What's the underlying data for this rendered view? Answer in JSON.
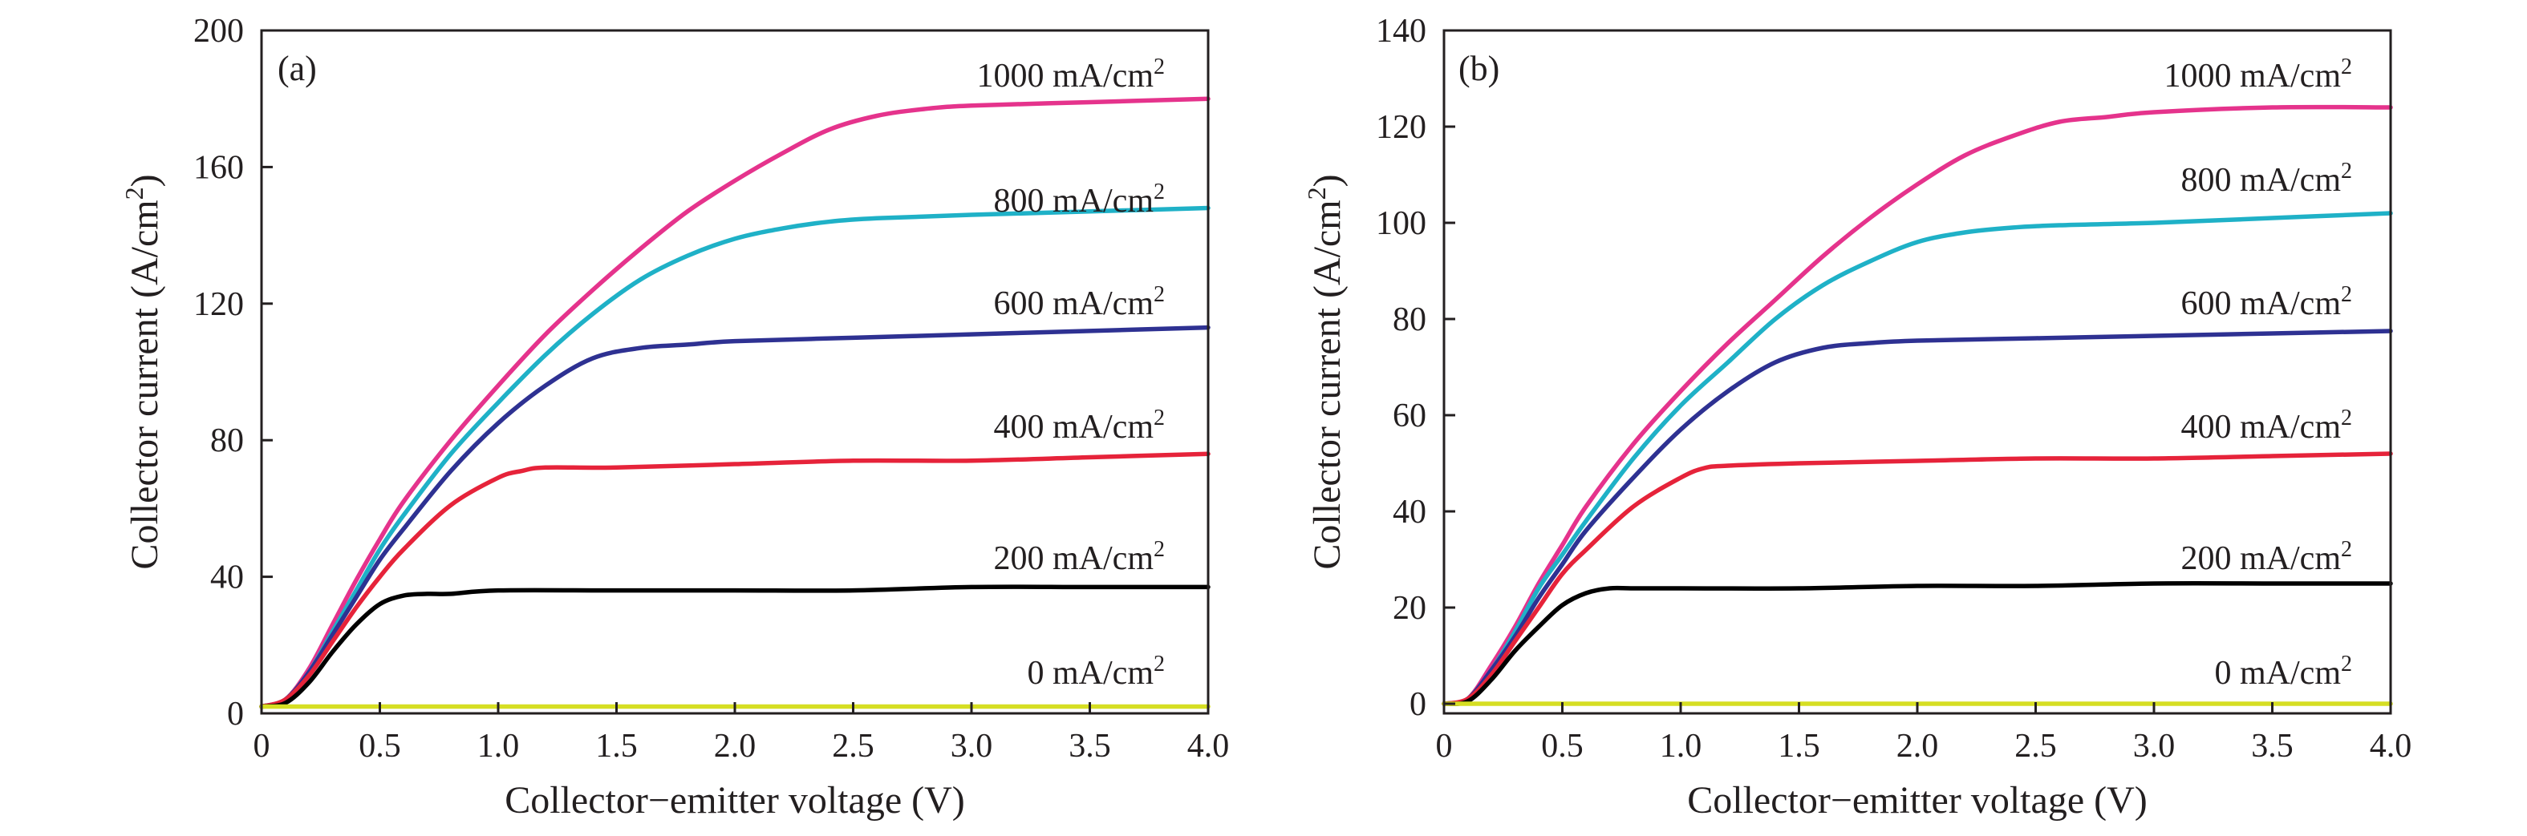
{
  "chart_data": [
    {
      "type": "line",
      "panel_label": "(a)",
      "xlabel": "Collector−emitter voltage (V)",
      "ylabel": "Collector current (A/cm",
      "ylabel_sup": "2",
      "ylabel_end": ")",
      "xlim": [
        0,
        4.0
      ],
      "ylim": [
        0,
        200
      ],
      "xticks": [
        0,
        0.5,
        1.0,
        1.5,
        2.0,
        2.5,
        3.0,
        3.5,
        4.0
      ],
      "xtick_labels": [
        "0",
        "0.5",
        "1.0",
        "1.5",
        "2.0",
        "2.5",
        "3.0",
        "3.5",
        "4.0"
      ],
      "yticks": [
        0,
        40,
        80,
        120,
        160,
        200
      ],
      "ytick_labels": [
        "0",
        "40",
        "80",
        "120",
        "160",
        "200"
      ],
      "grid": false,
      "series": [
        {
          "name": "1000 mA/cm",
          "sup": "2",
          "color": "#e5338c",
          "x": [
            0,
            0.1,
            0.2,
            0.3,
            0.4,
            0.5,
            0.6,
            0.8,
            1.0,
            1.2,
            1.4,
            1.6,
            1.8,
            2.0,
            2.2,
            2.4,
            2.6,
            2.8,
            3.0,
            3.5,
            4.0
          ],
          "y": [
            2,
            4,
            13,
            26,
            39,
            51,
            62,
            80,
            96,
            111,
            124,
            136,
            147,
            156,
            164,
            171,
            175,
            177,
            178,
            179,
            180
          ]
        },
        {
          "name": "800 mA/cm",
          "sup": "2",
          "color": "#1fb1c7",
          "x": [
            0,
            0.1,
            0.2,
            0.3,
            0.4,
            0.5,
            0.6,
            0.8,
            1.0,
            1.2,
            1.4,
            1.6,
            1.8,
            2.0,
            2.2,
            2.4,
            2.6,
            3.0,
            3.5,
            4.0
          ],
          "y": [
            2,
            4,
            12,
            24,
            36,
            48,
            58,
            76,
            91,
            105,
            117,
            127,
            134,
            139,
            142,
            144,
            145,
            146,
            147,
            148
          ]
        },
        {
          "name": "600 mA/cm",
          "sup": "2",
          "color": "#2e3192",
          "x": [
            0,
            0.1,
            0.2,
            0.3,
            0.4,
            0.5,
            0.6,
            0.8,
            1.0,
            1.2,
            1.4,
            1.6,
            1.8,
            2.0,
            2.5,
            3.0,
            3.5,
            4.0
          ],
          "y": [
            2,
            4,
            12,
            23,
            34,
            45,
            54,
            71,
            85,
            96,
            104,
            107,
            108,
            109,
            110,
            111,
            112,
            113
          ]
        },
        {
          "name": "400 mA/cm",
          "sup": "2",
          "color": "#e6233a",
          "x": [
            0,
            0.1,
            0.2,
            0.3,
            0.4,
            0.5,
            0.6,
            0.8,
            1.0,
            1.1,
            1.2,
            1.5,
            2.0,
            2.5,
            3.0,
            3.5,
            4.0
          ],
          "y": [
            2,
            4,
            11,
            21,
            31,
            40,
            48,
            61,
            69,
            71,
            72,
            72,
            73,
            74,
            74,
            75,
            76
          ]
        },
        {
          "name": "200 mA/cm",
          "sup": "2",
          "color": "#000000",
          "x": [
            0,
            0.1,
            0.2,
            0.3,
            0.4,
            0.5,
            0.6,
            0.7,
            0.8,
            1.0,
            1.5,
            2.0,
            2.5,
            3.0,
            3.5,
            4.0
          ],
          "y": [
            2,
            3,
            9,
            18,
            26,
            32,
            34.5,
            35,
            35,
            36,
            36,
            36,
            36,
            37,
            37,
            37
          ]
        },
        {
          "name": "0 mA/cm",
          "sup": "2",
          "color": "#d6de23",
          "x": [
            0,
            4.0
          ],
          "y": [
            2,
            2
          ]
        }
      ]
    },
    {
      "type": "line",
      "panel_label": "(b)",
      "xlabel": "Collector−emitter voltage (V)",
      "ylabel": "Collector current (A/cm",
      "ylabel_sup": "2",
      "ylabel_end": ")",
      "xlim": [
        0,
        4.0
      ],
      "ylim": [
        -2,
        140
      ],
      "xticks": [
        0,
        0.5,
        1.0,
        1.5,
        2.0,
        2.5,
        3.0,
        3.5,
        4.0
      ],
      "xtick_labels": [
        "0",
        "0.5",
        "1.0",
        "1.5",
        "2.0",
        "2.5",
        "3.0",
        "3.5",
        "4.0"
      ],
      "yticks": [
        0,
        20,
        40,
        60,
        80,
        100,
        120,
        140
      ],
      "ytick_labels": [
        "0",
        "20",
        "40",
        "60",
        "80",
        "100",
        "120",
        "140"
      ],
      "grid": false,
      "series": [
        {
          "name": "1000 mA/cm",
          "sup": "2",
          "color": "#e5338c",
          "x": [
            0,
            0.1,
            0.2,
            0.3,
            0.4,
            0.5,
            0.6,
            0.8,
            1.0,
            1.2,
            1.4,
            1.6,
            1.8,
            2.0,
            2.2,
            2.4,
            2.6,
            2.8,
            3.0,
            3.5,
            4.0
          ],
          "y": [
            0,
            1,
            8,
            16,
            25,
            33,
            41,
            54,
            65,
            75,
            84,
            93,
            101,
            108,
            114,
            118,
            121,
            122,
            123,
            124,
            124
          ]
        },
        {
          "name": "800 mA/cm",
          "sup": "2",
          "color": "#1fb1c7",
          "x": [
            0,
            0.1,
            0.2,
            0.3,
            0.4,
            0.5,
            0.6,
            0.8,
            1.0,
            1.2,
            1.4,
            1.6,
            1.8,
            2.0,
            2.2,
            2.4,
            2.6,
            3.0,
            3.5,
            4.0
          ],
          "y": [
            0,
            1,
            7,
            15,
            24,
            31,
            38,
            51,
            62,
            71,
            80,
            87,
            92,
            96,
            98,
            99,
            99.5,
            100,
            101,
            102
          ]
        },
        {
          "name": "600 mA/cm",
          "sup": "2",
          "color": "#2e3192",
          "x": [
            0,
            0.1,
            0.2,
            0.3,
            0.4,
            0.5,
            0.6,
            0.8,
            1.0,
            1.2,
            1.4,
            1.6,
            1.8,
            2.0,
            2.5,
            3.0,
            3.5,
            4.0
          ],
          "y": [
            0,
            1,
            7,
            14,
            22,
            29,
            36,
            47,
            57,
            65,
            71,
            74,
            75,
            75.5,
            76,
            76.5,
            77,
            77.5
          ]
        },
        {
          "name": "400 mA/cm",
          "sup": "2",
          "color": "#e6233a",
          "x": [
            0,
            0.1,
            0.2,
            0.3,
            0.4,
            0.5,
            0.6,
            0.8,
            1.0,
            1.1,
            1.2,
            1.5,
            2.0,
            2.5,
            3.0,
            3.5,
            4.0
          ],
          "y": [
            0,
            1,
            6,
            13,
            20,
            27,
            32,
            41,
            47,
            49,
            49.5,
            50,
            50.5,
            51,
            51,
            51.5,
            52
          ]
        },
        {
          "name": "200 mA/cm",
          "sup": "2",
          "color": "#000000",
          "x": [
            0,
            0.1,
            0.2,
            0.3,
            0.4,
            0.5,
            0.6,
            0.7,
            0.8,
            1.0,
            1.5,
            2.0,
            2.5,
            3.0,
            3.5,
            4.0
          ],
          "y": [
            0,
            0.5,
            5,
            11,
            16,
            20.5,
            23,
            24,
            24,
            24,
            24,
            24.5,
            24.5,
            25,
            25,
            25
          ]
        },
        {
          "name": "0 mA/cm",
          "sup": "2",
          "color": "#d6de23",
          "x": [
            0,
            4.0
          ],
          "y": [
            0,
            0
          ]
        }
      ]
    }
  ]
}
